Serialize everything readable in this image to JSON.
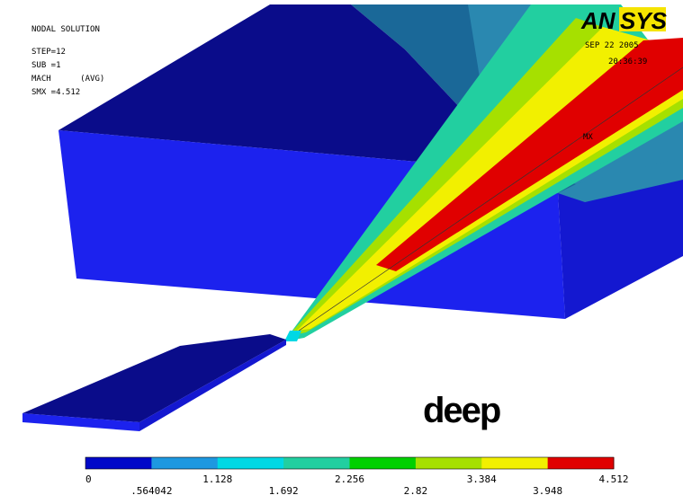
{
  "header": {
    "lines": [
      "NODAL SOLUTION",
      "STEP=12",
      "SUB =1",
      "MACH      (AVG)",
      "SMX =4.512"
    ]
  },
  "logo": {
    "left": "AN",
    "right": "SYS"
  },
  "timestamp": {
    "date": "SEP 22 2005",
    "time": "20:36:39"
  },
  "annotations": {
    "marker": "MX",
    "caption": "deep"
  },
  "legend": {
    "labels": [
      "0",
      ".564042",
      "1.128",
      "1.692",
      "2.256",
      "2.82",
      "3.384",
      "3.948",
      "4.512"
    ],
    "colors": [
      "#0008c8",
      "#1e98e0",
      "#00d8e4",
      "#22cfa0",
      "#00d000",
      "#a6e000",
      "#f2f000",
      "#e00000"
    ]
  }
}
